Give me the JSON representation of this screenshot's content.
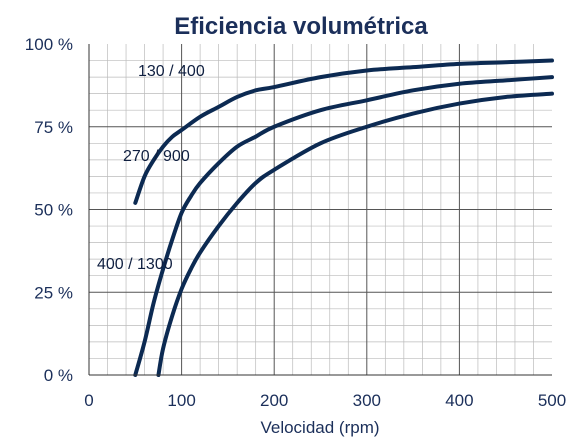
{
  "chart_data": {
    "type": "line",
    "title": "Eficiencia volumétrica",
    "xlabel": "Velocidad (rpm)",
    "ylabel": "",
    "xlim": [
      0,
      500
    ],
    "ylim": [
      0,
      100
    ],
    "x_ticks": [
      "0",
      "100",
      "200",
      "300",
      "400",
      "500"
    ],
    "y_ticks": [
      "0 %",
      "25 %",
      "50 %",
      "75 %",
      "100 %"
    ],
    "grid": true,
    "colors": {
      "line": "#0c2a52",
      "text": "#1b2f5a",
      "grid_major": "#555555",
      "grid_minor": "#bbbbbb"
    },
    "series": [
      {
        "name": "130 / 400",
        "x": [
          50,
          60,
          70,
          80,
          90,
          100,
          120,
          140,
          160,
          180,
          200,
          250,
          300,
          350,
          400,
          450,
          500
        ],
        "y": [
          52,
          60,
          65,
          69,
          72,
          74,
          78,
          81,
          84,
          86,
          87,
          90,
          92,
          93,
          94,
          94.5,
          95
        ]
      },
      {
        "name": "270 / 900",
        "x": [
          50,
          60,
          70,
          80,
          90,
          100,
          110,
          120,
          140,
          160,
          180,
          200,
          250,
          300,
          350,
          400,
          450,
          500
        ],
        "y": [
          0,
          10,
          22,
          32,
          41,
          49,
          54,
          58,
          64,
          69,
          72,
          75,
          80,
          83,
          86,
          88,
          89,
          90
        ]
      },
      {
        "name": "400 / 1300",
        "x": [
          75,
          80,
          90,
          100,
          110,
          120,
          140,
          160,
          180,
          200,
          250,
          300,
          350,
          400,
          450,
          500
        ],
        "y": [
          0,
          8,
          18,
          26,
          32,
          37,
          45,
          52,
          58,
          62,
          70,
          75,
          79,
          82,
          84,
          85
        ]
      }
    ]
  }
}
